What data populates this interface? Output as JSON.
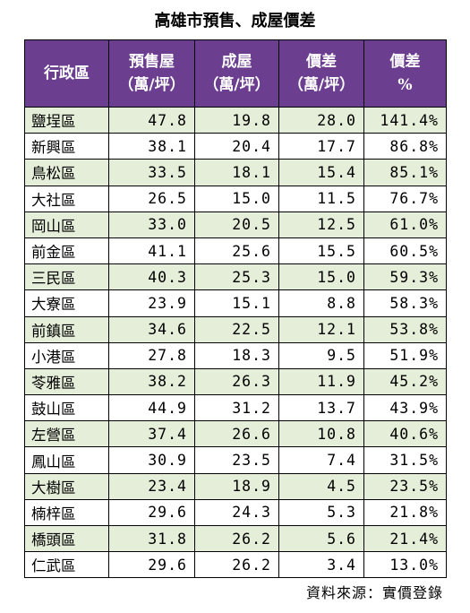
{
  "title": "高雄市預售、成屋價差",
  "headers": [
    [
      "行政區"
    ],
    [
      "預售屋",
      "（萬/坪）"
    ],
    [
      "成屋",
      "（萬/坪）"
    ],
    [
      "價差",
      "（萬/坪）"
    ],
    [
      "價差",
      "%"
    ]
  ],
  "rows": [
    {
      "district": "鹽埕區",
      "presale": "47.8",
      "existing": "19.8",
      "diff": "28.0",
      "pct": "141.4%"
    },
    {
      "district": "新興區",
      "presale": "38.1",
      "existing": "20.4",
      "diff": "17.7",
      "pct": "86.8%"
    },
    {
      "district": "鳥松區",
      "presale": "33.5",
      "existing": "18.1",
      "diff": "15.4",
      "pct": "85.1%"
    },
    {
      "district": "大社區",
      "presale": "26.5",
      "existing": "15.0",
      "diff": "11.5",
      "pct": "76.7%"
    },
    {
      "district": "岡山區",
      "presale": "33.0",
      "existing": "20.5",
      "diff": "12.5",
      "pct": "61.0%"
    },
    {
      "district": "前金區",
      "presale": "41.1",
      "existing": "25.6",
      "diff": "15.5",
      "pct": "60.5%"
    },
    {
      "district": "三民區",
      "presale": "40.3",
      "existing": "25.3",
      "diff": "15.0",
      "pct": "59.3%"
    },
    {
      "district": "大寮區",
      "presale": "23.9",
      "existing": "15.1",
      "diff": "8.8",
      "pct": "58.3%"
    },
    {
      "district": "前鎮區",
      "presale": "34.6",
      "existing": "22.5",
      "diff": "12.1",
      "pct": "53.8%"
    },
    {
      "district": "小港區",
      "presale": "27.8",
      "existing": "18.3",
      "diff": "9.5",
      "pct": "51.9%"
    },
    {
      "district": "苓雅區",
      "presale": "38.2",
      "existing": "26.3",
      "diff": "11.9",
      "pct": "45.2%"
    },
    {
      "district": "鼓山區",
      "presale": "44.9",
      "existing": "31.2",
      "diff": "13.7",
      "pct": "43.9%"
    },
    {
      "district": "左營區",
      "presale": "37.4",
      "existing": "26.6",
      "diff": "10.8",
      "pct": "40.6%"
    },
    {
      "district": "鳳山區",
      "presale": "30.9",
      "existing": "23.5",
      "diff": "7.4",
      "pct": "31.5%"
    },
    {
      "district": "大樹區",
      "presale": "23.4",
      "existing": "18.9",
      "diff": "4.5",
      "pct": "23.5%"
    },
    {
      "district": "楠梓區",
      "presale": "29.6",
      "existing": "24.3",
      "diff": "5.3",
      "pct": "21.8%"
    },
    {
      "district": "橋頭區",
      "presale": "31.8",
      "existing": "26.2",
      "diff": "5.6",
      "pct": "21.4%"
    },
    {
      "district": "仁武區",
      "presale": "29.6",
      "existing": "26.2",
      "diff": "3.4",
      "pct": "13.0%"
    }
  ],
  "source": "資料來源：實價登錄",
  "colors": {
    "header_bg": "#6b3e90",
    "header_text": "#ffffff",
    "stripe": "#e4eed8"
  }
}
